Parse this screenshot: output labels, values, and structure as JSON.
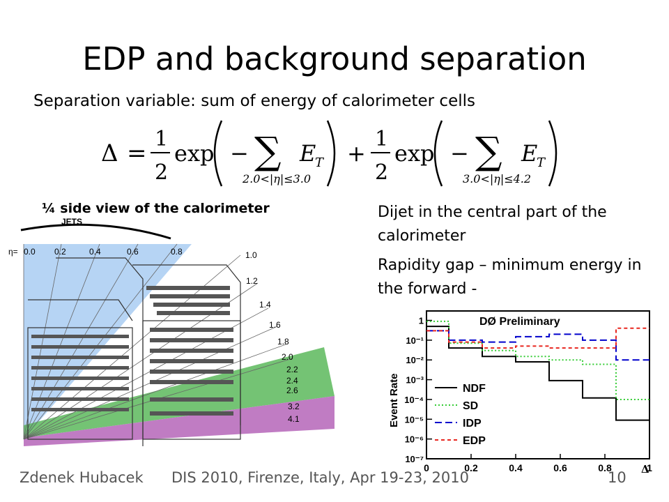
{
  "slide": {
    "title": "EDP and background separation",
    "subtitle": "Separation variable:  sum of energy of calorimeter cells",
    "formula": {
      "lhs": "Δ",
      "half_num": "1",
      "half_den": "2",
      "exp": "exp",
      "sum_var": "E",
      "sum_sub": "T",
      "range1": "2.0<|η|≤3.0",
      "range2": "3.0<|η|≤4.2"
    },
    "sideview_label": "¼ side view of the calorimeter",
    "bullet1": "Dijet in the central part of the calorimeter",
    "bullet2": "Rapidity gap – minimum energy in the forward -"
  },
  "calorimeter": {
    "jets_label": "JETS",
    "eta_prefix": "η=",
    "top_eta": [
      "0.0",
      "0.2",
      "0.4",
      "0.6",
      "0.8"
    ],
    "side_eta": [
      "1.0",
      "1.2",
      "1.4",
      "1.6",
      "1.8",
      "2.0",
      "2.2",
      "2.4",
      "2.6",
      "3.2",
      "4.1"
    ],
    "colors": {
      "jets": "#a9cdf2",
      "green": "#5cb85c",
      "purple": "#b565b8"
    }
  },
  "chart_data": {
    "type": "line",
    "title": "DØ Preliminary",
    "xlabel": "Δ",
    "ylabel": "Event Rate",
    "x_ticks": [
      "0",
      "0.2",
      "0.4",
      "0.6",
      "0.8",
      "1"
    ],
    "y_ticks": [
      "1",
      "10⁻¹",
      "10⁻²",
      "10⁻³",
      "10⁻⁴",
      "10⁻⁵",
      "10⁻⁶",
      "10⁻⁷"
    ],
    "xlim": [
      0,
      1
    ],
    "ylim": [
      1e-07,
      3
    ],
    "y_scale": "log",
    "legend_position": "lower-left",
    "bin_edges": [
      0,
      0.1,
      0.25,
      0.4,
      0.55,
      0.7,
      0.85,
      1.0
    ],
    "series": [
      {
        "name": "NDF",
        "color": "#000000",
        "dash": "solid",
        "values": [
          0.5,
          0.04,
          0.015,
          0.008,
          0.0009,
          0.00012,
          9e-06
        ]
      },
      {
        "name": "SD",
        "color": "#33cc33",
        "dash": "dot",
        "values": [
          0.9,
          0.07,
          0.03,
          0.015,
          0.01,
          0.006,
          0.0001
        ]
      },
      {
        "name": "IDP",
        "color": "#0000cc",
        "dash": "dash",
        "values": [
          0.3,
          0.1,
          0.08,
          0.15,
          0.2,
          0.1,
          0.01
        ]
      },
      {
        "name": "EDP",
        "color": "#e8261f",
        "dash": "shortdash",
        "values": [
          0.3,
          0.08,
          0.04,
          0.05,
          0.04,
          0.04,
          0.4
        ]
      }
    ]
  },
  "footer": {
    "author": "Zdenek Hubacek",
    "conference": "DIS 2010, Firenze, Italy, Apr 19-23, 2010",
    "page": "10"
  }
}
